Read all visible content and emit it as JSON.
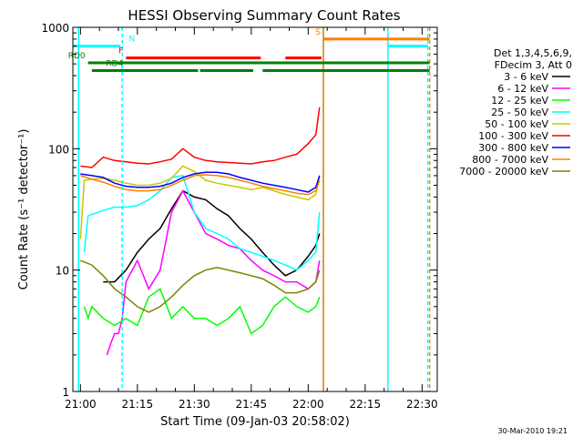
{
  "chart_data": {
    "type": "line",
    "title": "HESSI Observing Summary Count Rates",
    "xlabel": "Start Time (09-Jan-03 20:58:02)",
    "ylabel": "Count Rate (s⁻¹ detector⁻¹)",
    "yscale": "log",
    "ylim": [
      1,
      1000
    ],
    "xlim_minutes": [
      -2,
      94
    ],
    "x_ticks": [
      {
        "label": "21:00",
        "min": 0
      },
      {
        "label": "21:15",
        "min": 15
      },
      {
        "label": "21:30",
        "min": 30
      },
      {
        "label": "21:45",
        "min": 45
      },
      {
        "label": "22:00",
        "min": 60
      },
      {
        "label": "22:15",
        "min": 75
      },
      {
        "label": "22:30",
        "min": 90
      }
    ],
    "y_ticks": [
      {
        "label": "1",
        "value": 1
      },
      {
        "label": "10",
        "value": 10
      },
      {
        "label": "100",
        "value": 100
      },
      {
        "label": "1000",
        "value": 1000
      }
    ],
    "legend_header": [
      "Det 1,3,4,5,6,9,",
      "FDecim 3, Att 0"
    ],
    "legend_placement": "right",
    "footer_date": "30-Mar-2010 19:21",
    "series": [
      {
        "name": "3 - 6 keV",
        "color": "#000000",
        "x": [
          6,
          9,
          12,
          15,
          18,
          21,
          24,
          27,
          30,
          33,
          36,
          39,
          42,
          45,
          48,
          51,
          54,
          57,
          60,
          62,
          63
        ],
        "y": [
          8,
          8,
          10,
          14,
          18,
          22,
          32,
          45,
          40,
          38,
          32,
          28,
          22,
          18,
          14,
          11,
          9,
          10,
          13,
          16,
          20
        ]
      },
      {
        "name": "6 - 12 keV",
        "color": "#ff00ff",
        "x": [
          7,
          8,
          9,
          10,
          11,
          12,
          15,
          18,
          21,
          24,
          27,
          30,
          33,
          36,
          39,
          42,
          45,
          48,
          51,
          54,
          57,
          60,
          62,
          63
        ],
        "y": [
          2,
          2.5,
          3,
          3,
          4,
          8,
          12,
          7,
          10,
          30,
          45,
          30,
          20,
          18,
          16,
          15,
          12,
          10,
          9,
          8,
          8,
          7,
          8,
          12
        ]
      },
      {
        "name": "12 - 25 keV",
        "color": "#00ff00",
        "x": [
          1,
          2,
          3,
          6,
          9,
          12,
          15,
          18,
          21,
          24,
          27,
          30,
          33,
          36,
          39,
          42,
          45,
          48,
          51,
          54,
          57,
          60,
          62,
          63
        ],
        "y": [
          5,
          4,
          5,
          4,
          3.5,
          4,
          3.5,
          6,
          7,
          4,
          5,
          4,
          4,
          3.5,
          4,
          5,
          3,
          3.5,
          5,
          6,
          5,
          4.5,
          5,
          6
        ]
      },
      {
        "name": "25 - 50 keV",
        "color": "#00ffff",
        "x": [
          1,
          2,
          6,
          9,
          12,
          15,
          18,
          21,
          24,
          27,
          30,
          33,
          36,
          39,
          42,
          45,
          48,
          51,
          54,
          57,
          60,
          62,
          63
        ],
        "y": [
          14,
          28,
          31,
          33,
          33,
          34,
          38,
          45,
          58,
          60,
          30,
          22,
          20,
          18,
          15,
          14,
          13,
          12,
          11,
          10,
          12,
          14,
          30
        ]
      },
      {
        "name": "50 - 100 keV",
        "color": "#c8c800",
        "x": [
          0,
          1,
          3,
          6,
          9,
          12,
          15,
          18,
          21,
          24,
          27,
          30,
          33,
          36,
          39,
          42,
          45,
          48,
          51,
          54,
          57,
          60,
          62,
          63
        ],
        "y": [
          18,
          55,
          56,
          57,
          55,
          52,
          50,
          50,
          52,
          57,
          72,
          65,
          55,
          52,
          50,
          48,
          46,
          48,
          45,
          42,
          40,
          38,
          42,
          60
        ]
      },
      {
        "name": "100 - 300 keV",
        "color": "#ff0000",
        "x": [
          0,
          3,
          6,
          9,
          12,
          15,
          18,
          21,
          24,
          27,
          30,
          33,
          36,
          39,
          42,
          45,
          48,
          51,
          54,
          57,
          60,
          62,
          63
        ],
        "y": [
          72,
          70,
          85,
          80,
          78,
          76,
          75,
          78,
          82,
          100,
          85,
          80,
          78,
          77,
          76,
          75,
          78,
          80,
          85,
          90,
          110,
          130,
          220
        ]
      },
      {
        "name": "300 - 800 keV",
        "color": "#0000ff",
        "x": [
          0,
          3,
          6,
          9,
          12,
          15,
          18,
          21,
          24,
          27,
          30,
          33,
          36,
          39,
          42,
          45,
          48,
          51,
          54,
          57,
          60,
          62,
          63
        ],
        "y": [
          62,
          60,
          58,
          52,
          49,
          48,
          48,
          49,
          52,
          58,
          62,
          64,
          64,
          62,
          58,
          55,
          52,
          50,
          48,
          46,
          44,
          48,
          60
        ]
      },
      {
        "name": "800 - 7000 keV",
        "color": "#ff8000",
        "x": [
          0,
          3,
          6,
          9,
          12,
          15,
          18,
          21,
          24,
          27,
          30,
          33,
          36,
          39,
          42,
          45,
          48,
          51,
          54,
          57,
          60,
          62,
          63
        ],
        "y": [
          60,
          56,
          53,
          49,
          46,
          45,
          45,
          46,
          50,
          55,
          60,
          61,
          60,
          58,
          55,
          52,
          49,
          47,
          45,
          43,
          42,
          45,
          55
        ]
      },
      {
        "name": "7000 - 20000 keV",
        "color": "#808000",
        "x": [
          0,
          3,
          6,
          9,
          12,
          15,
          18,
          21,
          24,
          27,
          30,
          33,
          36,
          39,
          42,
          45,
          48,
          51,
          54,
          57,
          60,
          62,
          63
        ],
        "y": [
          12,
          11,
          9,
          7,
          6,
          5,
          4.5,
          5,
          6,
          7.5,
          9,
          10,
          10.5,
          10,
          9.5,
          9,
          8.5,
          7.5,
          6.5,
          6.5,
          7,
          8,
          10
        ]
      }
    ],
    "vertical_lines": [
      {
        "min": -0.5,
        "color": "#00ffff",
        "dashed": false
      },
      {
        "min": 11,
        "color": "#00ffff",
        "dashed": true
      },
      {
        "min": 64,
        "color": "#c88000",
        "dashed": false
      },
      {
        "min": 81,
        "color": "#00ffff",
        "dashed": false
      },
      {
        "min": 91.5,
        "color": "#00ffff",
        "dashed": true
      },
      {
        "min": 92,
        "color": "#ff8000",
        "dashed": true
      }
    ],
    "flag_bars": [
      {
        "label": "N",
        "color": "#00ffff",
        "segments": [
          [
            -2,
            10.5
          ],
          [
            81,
            91.5
          ]
        ],
        "value": 700,
        "label_at": 12,
        "label_side": "right"
      },
      {
        "label": "F",
        "color": "#ff0000",
        "segments": [
          [
            12,
            47.5
          ],
          [
            54,
            63.5
          ]
        ],
        "value": 560,
        "label_at": 12,
        "label_side": "left"
      },
      {
        "label": "S",
        "color": "#ff8000",
        "segments": [
          [
            64,
            92
          ]
        ],
        "value": 800,
        "label_at": 64,
        "label_side": "left"
      },
      {
        "label": "RD0",
        "color": "#008000",
        "segments": [
          [
            2,
            92
          ]
        ],
        "value": 510,
        "label_at": 2,
        "label_side": "left"
      },
      {
        "label": "RD4",
        "color": "#008000",
        "segments": [
          [
            3,
            31
          ],
          [
            31.5,
            45.5
          ],
          [
            48,
            92
          ]
        ],
        "value": 440,
        "label_at": 6,
        "label_side": "right"
      }
    ]
  }
}
